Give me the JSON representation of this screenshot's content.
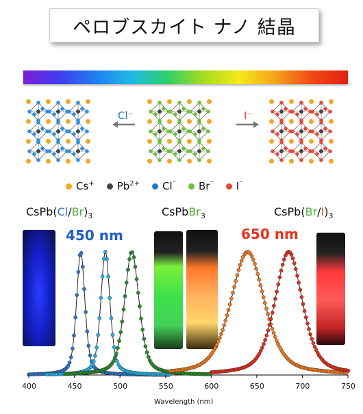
{
  "title": "ペロブスカイト ナノ 結晶",
  "arrows": {
    "left_label": "Cl⁻",
    "right_label": "I⁻"
  },
  "legend": [
    {
      "sup_label": "Cs",
      "sup": "+",
      "color": "#f5a623"
    },
    {
      "sup_label": "Pb",
      "sup": "2+",
      "color": "#444444"
    },
    {
      "sup_label": "Cl",
      "sup": "⁻",
      "color": "#1f77d4"
    },
    {
      "sup_label": "Br",
      "sup": "⁻",
      "color": "#6fbf3a"
    },
    {
      "sup_label": "I",
      "sup": "⁻",
      "color": "#e8473a"
    }
  ],
  "formulas": {
    "left": {
      "prefix": "CsPb(",
      "a": "Cl",
      "slash": "/",
      "b": "Br",
      "suffix": ")",
      "sub": "3"
    },
    "center": {
      "prefix": "CsPb",
      "a": "Br",
      "sub": "3"
    },
    "right": {
      "prefix": "CsPb(",
      "a": "Br",
      "slash": "/",
      "b": "I",
      "suffix": ")",
      "sub": "3"
    }
  },
  "wavelength_marks": {
    "short": "450 nm",
    "long": "650 nm"
  },
  "colors": {
    "blue_text": "#1f5fc4",
    "red_text": "#e8321e",
    "green_text": "#4caf35"
  },
  "chart_data": {
    "type": "line",
    "xlabel": "Wavelength (nm)",
    "xlim": [
      400,
      750
    ],
    "xticks": [
      400,
      450,
      500,
      550,
      600,
      650,
      700,
      750
    ],
    "series": [
      {
        "peak": 457,
        "fwhm": 11,
        "color": "#2f74c8",
        "range": [
          400,
          555
        ]
      },
      {
        "peak": 484,
        "fwhm": 12,
        "color": "#2ab0e0",
        "range": [
          420,
          555
        ]
      },
      {
        "peak": 513,
        "fwhm": 19,
        "color": "#2a8a2a",
        "range": [
          440,
          600
        ]
      },
      {
        "peak": 640,
        "fwhm": 44,
        "color": "#f07a1e",
        "range": [
          555,
          750
        ]
      },
      {
        "peak": 685,
        "fwhm": 36,
        "color": "#e0301e",
        "range": [
          600,
          752
        ]
      }
    ]
  }
}
